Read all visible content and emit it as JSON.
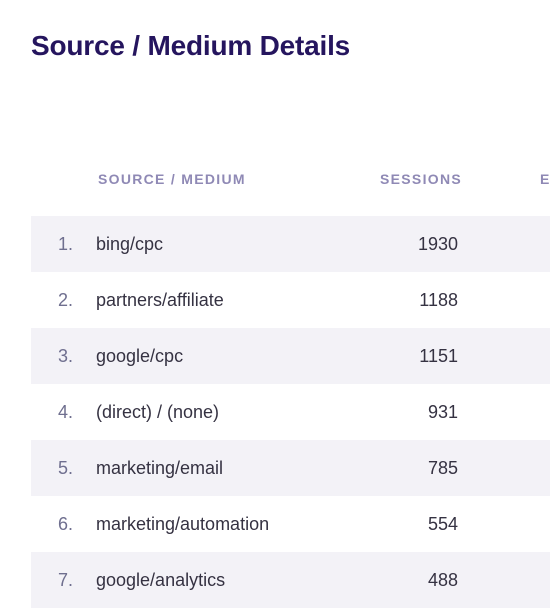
{
  "page": {
    "title": "Source / Medium Details"
  },
  "table": {
    "columns": [
      "SOURCE / MEDIUM",
      "SESSIONS",
      "E"
    ],
    "rows": [
      {
        "rank": "1.",
        "source": "bing/cpc",
        "sessions": "1930"
      },
      {
        "rank": "2.",
        "source": "partners/affiliate",
        "sessions": "1188"
      },
      {
        "rank": "3.",
        "source": "google/cpc",
        "sessions": "1151"
      },
      {
        "rank": "4.",
        "source": "(direct) / (none)",
        "sessions": "931"
      },
      {
        "rank": "5.",
        "source": "marketing/email",
        "sessions": "785"
      },
      {
        "rank": "6.",
        "source": "marketing/automation",
        "sessions": "554"
      },
      {
        "rank": "7.",
        "source": "google/analytics",
        "sessions": "488"
      }
    ]
  },
  "colors": {
    "title": "#25155e",
    "header": "#8f89b5",
    "row_shade": "#f3f2f7",
    "text": "#353242",
    "rank": "#6f6f8f"
  }
}
